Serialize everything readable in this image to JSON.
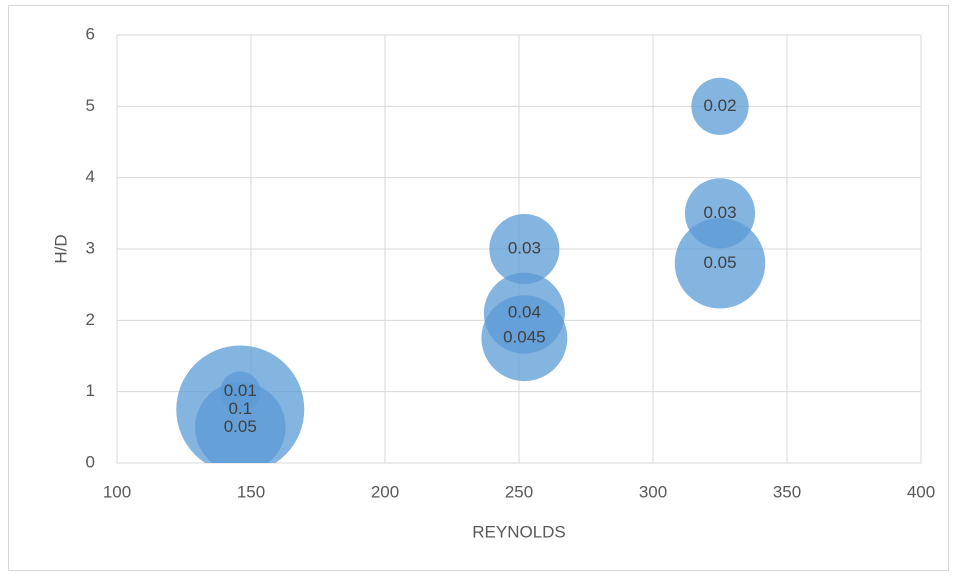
{
  "chart_data": {
    "type": "bubble",
    "x_label": "REYNOLDS",
    "y_label": "H/D",
    "x": [
      146,
      146,
      146,
      252,
      252,
      252,
      325,
      325,
      325
    ],
    "values": [
      1,
      0.75,
      0.5,
      3,
      2.1,
      1.75,
      5,
      3.5,
      2.8
    ],
    "sizes": [
      0.01,
      0.1,
      0.05,
      0.03,
      0.04,
      0.045,
      0.02,
      0.03,
      0.05
    ],
    "color": "#5b9bd5",
    "xlim": [
      100,
      400
    ],
    "xticks": [
      100,
      150,
      200,
      250,
      300,
      350,
      400
    ],
    "ylim": [
      0,
      6
    ],
    "yticks": [
      0,
      1,
      2,
      3,
      4,
      5,
      6
    ],
    "grid": true
  }
}
